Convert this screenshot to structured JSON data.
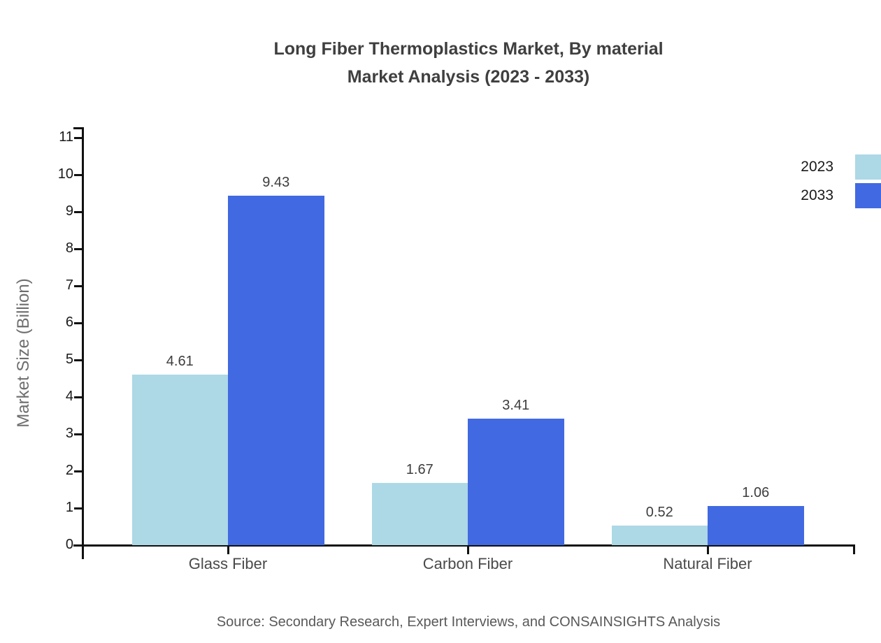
{
  "title": {
    "line1": "Long Fiber Thermoplastics Market, By material",
    "line2": "Market Analysis (2023 - 2033)"
  },
  "source": "Source: Secondary Research, Expert Interviews, and CONSAINSIGHTS Analysis",
  "chart_data": {
    "type": "bar",
    "title": "Long Fiber Thermoplastics Market, By material Market Analysis (2023 - 2033)",
    "categories": [
      "Glass Fiber",
      "Carbon Fiber",
      "Natural Fiber"
    ],
    "series": [
      {
        "name": "2023",
        "color": "#ADD8E6",
        "values": [
          4.61,
          1.67,
          0.52
        ]
      },
      {
        "name": "2033",
        "color": "#4169E1",
        "values": [
          9.43,
          3.41,
          1.06
        ]
      }
    ],
    "xlabel": "",
    "ylabel": "Market Size (Billion)",
    "ylim": [
      0,
      11
    ],
    "yticks": [
      0,
      1,
      2,
      3,
      4,
      5,
      6,
      7,
      8,
      9,
      10,
      11
    ],
    "grid": false,
    "legend_position": "top-right",
    "value_labels": true
  }
}
